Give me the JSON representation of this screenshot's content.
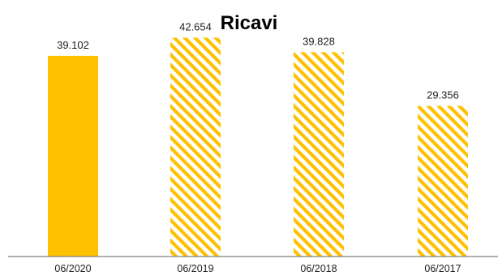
{
  "chart_data": {
    "type": "bar",
    "title": "Ricavi",
    "xlabel": "",
    "ylabel": "",
    "categories": [
      "06/2020",
      "06/2019",
      "06/2018",
      "06/2017"
    ],
    "values": [
      39102,
      42654,
      39828,
      29356
    ],
    "value_labels": [
      "39.102",
      "42.654",
      "39.828",
      "29.356"
    ],
    "fill_styles": [
      "solid",
      "hatched",
      "hatched",
      "hatched"
    ],
    "ylim": [
      0,
      50000
    ],
    "grid": false,
    "legend": "none",
    "colors": {
      "bar": "#FFC000",
      "axis": "#7F7F7F"
    }
  }
}
